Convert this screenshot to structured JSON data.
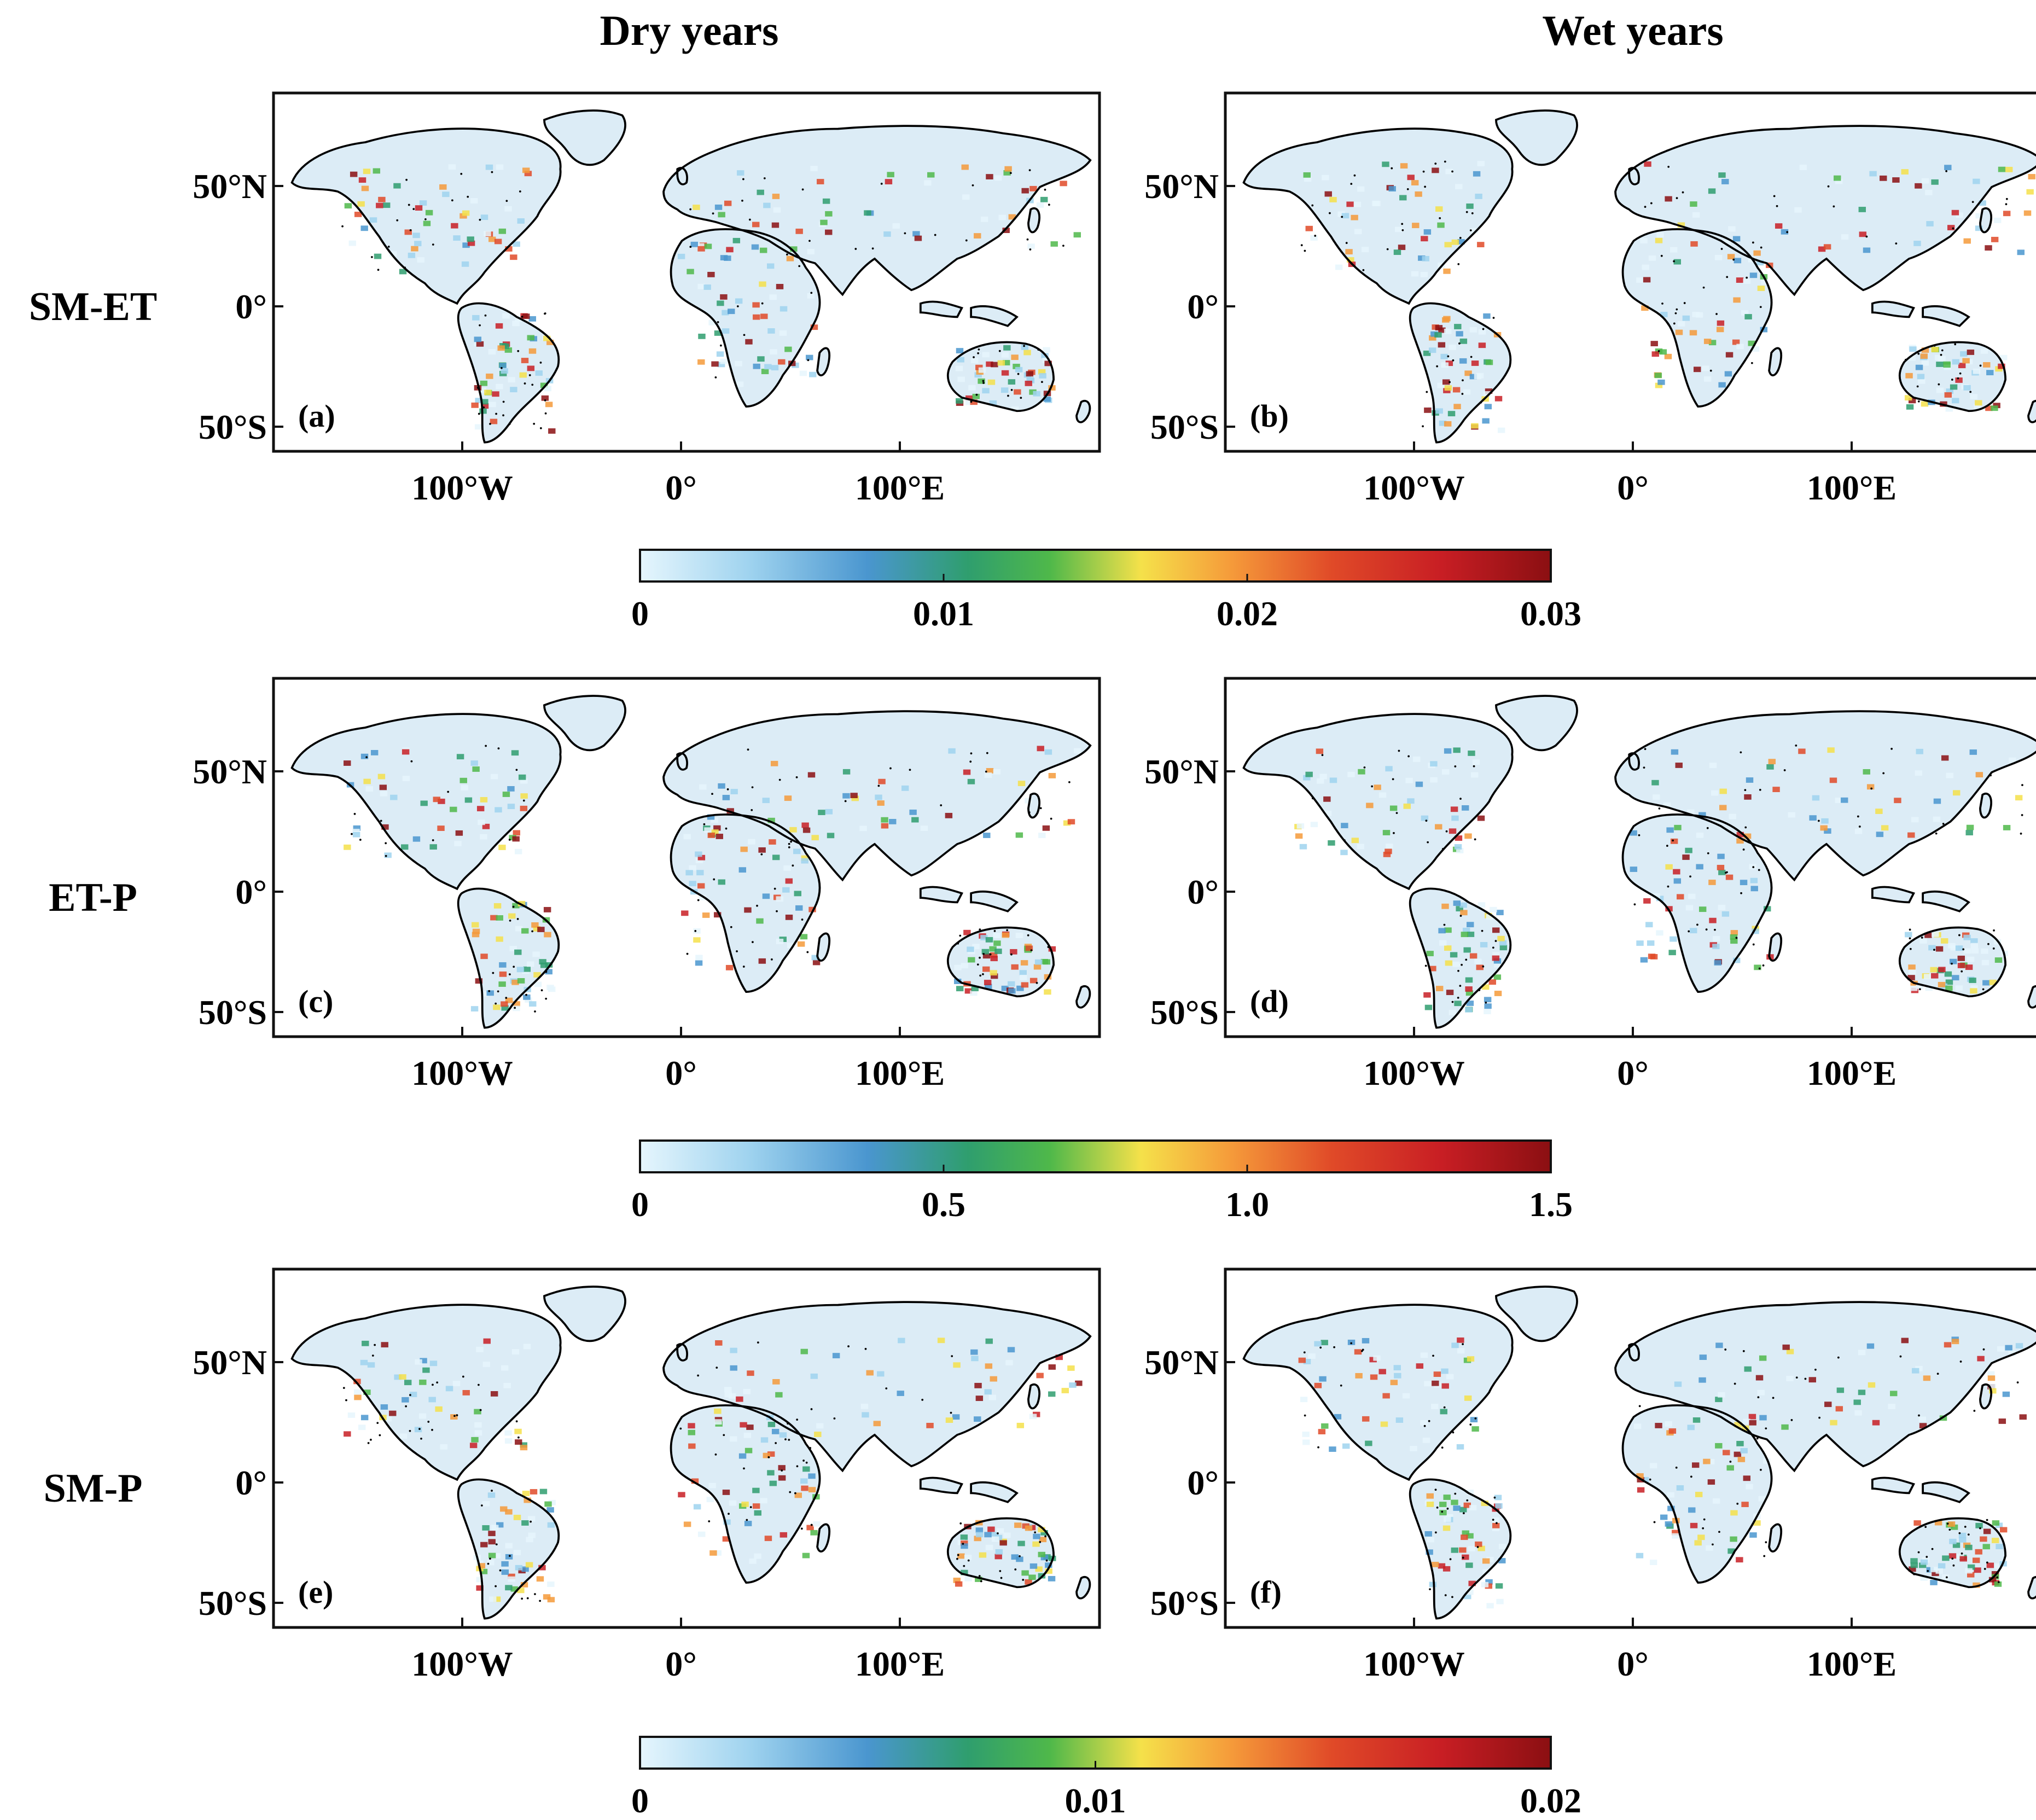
{
  "columns": [
    "Dry years",
    "Wet years"
  ],
  "rows": [
    {
      "label": "SM-ET",
      "panels": [
        "(a)",
        "(b)"
      ]
    },
    {
      "label": "ET-P",
      "panels": [
        "(c)",
        "(d)"
      ]
    },
    {
      "label": "SM-P",
      "panels": [
        "(e)",
        "(f)"
      ]
    }
  ],
  "lat_ticks": [
    "50°N",
    "0°",
    "50°S"
  ],
  "lon_ticks": [
    "100°W",
    "0°",
    "100°E"
  ],
  "colorbars": [
    {
      "ticks": [
        "0",
        "0.01",
        "0.02",
        "0.03"
      ],
      "values": [
        0,
        0.01,
        0.02,
        0.03
      ]
    },
    {
      "ticks": [
        "0",
        "0.5",
        "1.0",
        "1.5"
      ],
      "values": [
        0,
        0.5,
        1.0,
        1.5
      ]
    },
    {
      "ticks": [
        "0",
        "0.01",
        "0.02"
      ],
      "values": [
        0,
        0.01,
        0.02
      ]
    }
  ],
  "colormap": [
    "#e6f6fd",
    "#9fd3ef",
    "#4a96cf",
    "#2f9e6e",
    "#4fb84a",
    "#f5e14a",
    "#f59a3a",
    "#e04a28",
    "#c81e24",
    "#8b0f12"
  ],
  "colors": {
    "land_outline": "#000000",
    "frame": "#111111",
    "background": "#ffffff"
  }
}
